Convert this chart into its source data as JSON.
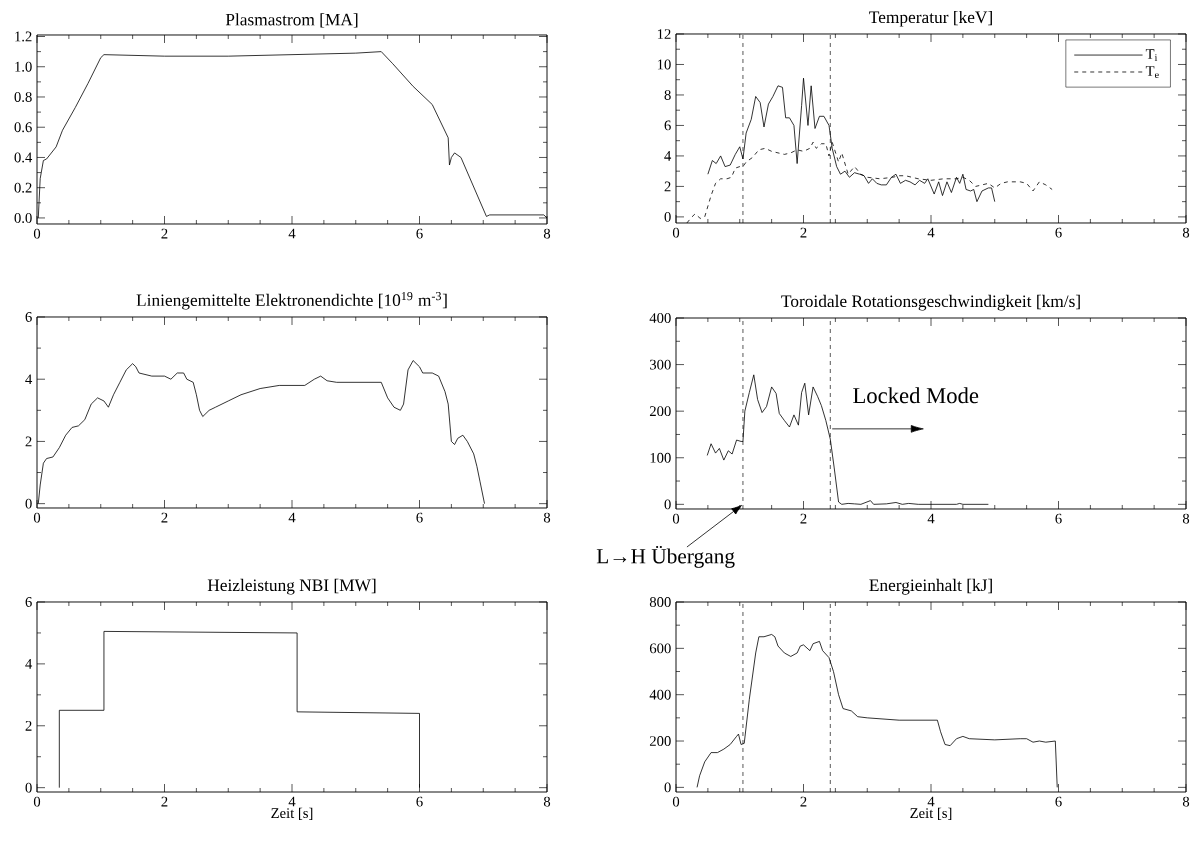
{
  "chart_data": [
    {
      "type": "line",
      "title": "Plasmastrom [MA]",
      "color": "#000000",
      "x": [
        0.02,
        0.05,
        0.1,
        0.15,
        0.3,
        0.4,
        0.6,
        0.8,
        1.0,
        1.05,
        2.0,
        3.0,
        4.0,
        5.0,
        5.4,
        5.58,
        5.9,
        6.2,
        6.45,
        6.47,
        6.5,
        6.55,
        6.65,
        7.05,
        7.1,
        7.95,
        8.0
      ],
      "values": [
        0.0,
        0.26,
        0.38,
        0.39,
        0.47,
        0.58,
        0.73,
        0.89,
        1.06,
        1.08,
        1.07,
        1.07,
        1.08,
        1.09,
        1.1,
        1.02,
        0.87,
        0.75,
        0.53,
        0.35,
        0.4,
        0.43,
        0.4,
        0.01,
        0.02,
        0.02,
        0.0
      ],
      "xlim": [
        0,
        8
      ],
      "ylim": [
        -0.04,
        1.21
      ],
      "xticks": [
        0,
        2,
        4,
        6,
        8
      ],
      "yticks": [
        {
          "value": 0,
          "label": "0.0"
        },
        0.2,
        0.4,
        0.6,
        0.8,
        {
          "value": 1,
          "label": "1.0"
        },
        1.2
      ]
    },
    {
      "type": "line",
      "title": "Temperatur [keV]",
      "legend": "top right",
      "series": [
        {
          "name": "T$_{i}$",
          "color": "#000000",
          "line_style": "solid",
          "x": [
            0.5,
            0.57,
            0.63,
            0.7,
            0.77,
            0.85,
            0.93,
            1.0,
            1.05,
            1.1,
            1.18,
            1.25,
            1.32,
            1.38,
            1.45,
            1.52,
            1.6,
            1.67,
            1.72,
            1.78,
            1.85,
            1.9,
            1.97,
            2.0,
            2.07,
            2.12,
            2.18,
            2.25,
            2.32,
            2.4,
            2.45,
            2.52,
            2.58,
            2.65,
            2.72,
            2.8,
            2.88,
            2.95,
            3.02,
            3.08,
            3.15,
            3.22,
            3.3,
            3.38,
            3.45,
            3.52,
            3.6,
            3.67,
            3.75,
            3.82,
            3.9,
            3.95,
            4.05,
            4.12,
            4.18,
            4.25,
            4.32,
            4.4,
            4.45,
            4.5,
            4.55,
            4.62,
            4.67,
            4.72,
            4.8,
            4.9,
            4.95,
            5.0
          ],
          "values": [
            2.8,
            3.7,
            3.5,
            4.0,
            3.3,
            3.4,
            4.1,
            4.6,
            3.8,
            5.5,
            6.4,
            7.9,
            7.5,
            5.9,
            7.4,
            7.9,
            8.6,
            8.5,
            6.5,
            6.5,
            6.0,
            3.5,
            7.3,
            9.1,
            6.0,
            8.6,
            5.8,
            6.6,
            6.6,
            6.0,
            4.5,
            3.3,
            2.8,
            3.0,
            2.6,
            2.9,
            2.8,
            2.7,
            2.2,
            2.5,
            2.2,
            2.1,
            2.1,
            2.6,
            2.8,
            2.2,
            2.4,
            2.3,
            2.1,
            2.4,
            2.2,
            2.5,
            1.5,
            2.3,
            1.4,
            2.3,
            1.6,
            2.6,
            2.2,
            2.8,
            1.8,
            1.7,
            1.8,
            1.0,
            1.7,
            1.9,
            1.9,
            1.0
          ]
        },
        {
          "name": "T$_{e}$",
          "color": "#000000",
          "line_style": "dashed",
          "x": [
            0.17,
            0.25,
            0.3,
            0.38,
            0.45,
            0.55,
            0.62,
            0.7,
            0.8,
            0.87,
            0.93,
            1.0,
            1.05,
            1.1,
            1.2,
            1.3,
            1.4,
            1.5,
            1.6,
            1.7,
            1.8,
            1.9,
            2.0,
            2.1,
            2.15,
            2.2,
            2.28,
            2.35,
            2.4,
            2.45,
            2.55,
            2.6,
            2.7,
            2.8,
            2.9,
            3.0,
            3.2,
            3.4,
            3.5,
            3.6,
            3.8,
            4.0,
            4.2,
            4.4,
            4.5,
            4.6,
            4.7,
            4.8,
            4.9,
            5.0,
            5.1,
            5.2,
            5.4,
            5.5,
            5.6,
            5.7,
            5.8,
            5.9
          ],
          "values": [
            -0.4,
            0.0,
            0.2,
            -0.1,
            0.0,
            1.4,
            2.2,
            2.5,
            2.5,
            2.6,
            3.2,
            3.3,
            3.3,
            3.6,
            3.9,
            4.4,
            4.5,
            4.3,
            4.2,
            4.1,
            4.2,
            4.4,
            4.3,
            4.5,
            4.9,
            4.5,
            4.8,
            4.8,
            4.0,
            4.9,
            3.6,
            4.2,
            2.8,
            3.3,
            2.8,
            2.6,
            2.5,
            2.6,
            2.7,
            2.7,
            2.5,
            2.4,
            2.5,
            2.5,
            2.6,
            2.4,
            2.0,
            2.1,
            2.2,
            1.9,
            2.2,
            2.3,
            2.3,
            2.2,
            1.7,
            2.3,
            2.1,
            1.8
          ]
        }
      ],
      "ref_lines": [
        {
          "axis": "x",
          "value": 1.05,
          "line_style": "dashed",
          "color": "#000000"
        },
        {
          "axis": "x",
          "value": 2.42,
          "line_style": "dashed",
          "color": "#000000"
        }
      ],
      "xlim": [
        0,
        8
      ],
      "ylim": [
        -0.4,
        12
      ],
      "xticks": [
        0,
        2,
        4,
        6,
        8
      ],
      "yticks": [
        0,
        2,
        4,
        6,
        8,
        10,
        12
      ]
    },
    {
      "type": "line",
      "title": "Liniengemittelte Elektronendichte [10$^{19}$ m$^{-3}$]",
      "color": "#000000",
      "x": [
        0.02,
        0.05,
        0.1,
        0.15,
        0.25,
        0.35,
        0.45,
        0.55,
        0.65,
        0.75,
        0.85,
        0.95,
        1.05,
        1.12,
        1.2,
        1.3,
        1.4,
        1.5,
        1.55,
        1.6,
        1.8,
        2.0,
        2.1,
        2.2,
        2.3,
        2.35,
        2.45,
        2.5,
        2.55,
        2.6,
        2.7,
        2.8,
        3.0,
        3.2,
        3.5,
        3.8,
        4.0,
        4.2,
        4.35,
        4.45,
        4.55,
        4.7,
        5.0,
        5.4,
        5.5,
        5.6,
        5.7,
        5.75,
        5.82,
        5.9,
        6.0,
        6.05,
        6.2,
        6.3,
        6.4,
        6.45,
        6.5,
        6.55,
        6.6,
        6.68,
        6.75,
        6.85,
        6.9,
        6.95,
        7.02
      ],
      "values": [
        0,
        0.6,
        1.3,
        1.45,
        1.5,
        1.8,
        2.2,
        2.45,
        2.5,
        2.7,
        3.2,
        3.4,
        3.3,
        3.1,
        3.5,
        3.9,
        4.3,
        4.5,
        4.4,
        4.2,
        4.1,
        4.1,
        4.0,
        4.2,
        4.2,
        4.0,
        3.9,
        3.5,
        3.0,
        2.8,
        3.0,
        3.1,
        3.3,
        3.5,
        3.7,
        3.8,
        3.8,
        3.8,
        4.0,
        4.1,
        3.95,
        3.9,
        3.9,
        3.9,
        3.4,
        3.1,
        3.0,
        3.2,
        4.3,
        4.6,
        4.4,
        4.2,
        4.2,
        4.1,
        3.6,
        3.2,
        2.0,
        1.9,
        2.1,
        2.2,
        2.0,
        1.6,
        1.2,
        0.7,
        0
      ],
      "xlim": [
        0,
        8
      ],
      "ylim": [
        -0.14,
        6
      ],
      "xticks": [
        0,
        2,
        4,
        6,
        8
      ],
      "yticks": [
        0,
        2,
        4,
        6
      ]
    },
    {
      "type": "line",
      "title": "Toroidale Rotationsgeschwindigkeit [km/s]",
      "color": "#000000",
      "x": [
        0.49,
        0.55,
        0.62,
        0.68,
        0.75,
        0.82,
        0.88,
        0.95,
        1.02,
        1.05,
        1.08,
        1.15,
        1.22,
        1.28,
        1.35,
        1.42,
        1.5,
        1.57,
        1.62,
        1.7,
        1.78,
        1.85,
        1.92,
        1.97,
        2.02,
        2.08,
        2.15,
        2.22,
        2.28,
        2.35,
        2.42,
        2.48,
        2.55,
        2.6,
        2.7,
        2.8,
        2.9,
        3.05,
        3.1,
        3.3,
        3.45,
        3.55,
        3.65,
        3.8,
        4.0,
        4.4,
        4.45,
        4.5,
        4.9
      ],
      "values": [
        105,
        130,
        110,
        120,
        95,
        115,
        108,
        138,
        135,
        135,
        200,
        240,
        278,
        225,
        197,
        210,
        252,
        238,
        195,
        180,
        166,
        192,
        170,
        240,
        260,
        192,
        252,
        232,
        212,
        180,
        140,
        80,
        5,
        0,
        2,
        1,
        0,
        8,
        0,
        1,
        4,
        0,
        2,
        0,
        0,
        0,
        2,
        0,
        0
      ],
      "ref_lines": [
        {
          "axis": "x",
          "value": 1.05,
          "line_style": "dashed",
          "color": "#000000"
        },
        {
          "axis": "x",
          "value": 2.42,
          "line_style": "dashed",
          "color": "#000000"
        }
      ],
      "annotations": [
        {
          "text": "L→H Übergang",
          "x": 1.05,
          "y": 0
        },
        {
          "text": "Locked Mode",
          "x": 2.45,
          "y": 162
        }
      ],
      "xlim": [
        0,
        8
      ],
      "ylim": [
        -10,
        400
      ],
      "xticks": [
        0,
        2,
        4,
        6,
        8
      ],
      "yticks": [
        0,
        100,
        200,
        300,
        400
      ]
    },
    {
      "type": "line",
      "title": "Heizleistung NBI [MW]",
      "xlabel": "Zeit [s]",
      "color": "#000000",
      "x": [
        0.35,
        0.35,
        1.05,
        1.05,
        4.08,
        4.08,
        6.0,
        6.0
      ],
      "values": [
        0,
        2.5,
        2.5,
        5.05,
        5.0,
        2.45,
        2.4,
        0
      ],
      "xlim": [
        0,
        8
      ],
      "ylim": [
        -0.14,
        6
      ],
      "xticks": [
        0,
        2,
        4,
        6,
        8
      ],
      "yticks": [
        0,
        2,
        4,
        6
      ]
    },
    {
      "type": "line",
      "title": "Energieinhalt [kJ]",
      "xlabel": "Zeit [s]",
      "color": "#000000",
      "x": [
        0.33,
        0.37,
        0.45,
        0.55,
        0.65,
        0.75,
        0.85,
        0.95,
        0.98,
        1.02,
        1.07,
        1.15,
        1.25,
        1.3,
        1.38,
        1.5,
        1.55,
        1.6,
        1.7,
        1.8,
        1.9,
        1.95,
        2.0,
        2.1,
        2.15,
        2.25,
        2.3,
        2.4,
        2.47,
        2.55,
        2.62,
        2.75,
        2.85,
        3.0,
        3.5,
        4.0,
        4.1,
        4.15,
        4.22,
        4.3,
        4.4,
        4.5,
        4.6,
        5.0,
        5.4,
        5.5,
        5.6,
        5.7,
        5.8,
        5.95,
        5.98
      ],
      "values": [
        0,
        50,
        110,
        150,
        150,
        165,
        185,
        220,
        230,
        185,
        190,
        380,
        580,
        650,
        650,
        660,
        650,
        610,
        580,
        565,
        580,
        610,
        615,
        590,
        620,
        630,
        590,
        560,
        500,
        400,
        340,
        330,
        305,
        300,
        290,
        290,
        290,
        240,
        185,
        180,
        210,
        220,
        210,
        205,
        210,
        210,
        195,
        200,
        195,
        200,
        0
      ],
      "ref_lines": [
        {
          "axis": "x",
          "value": 1.05,
          "line_style": "dashed",
          "color": "#000000"
        },
        {
          "axis": "x",
          "value": 2.42,
          "line_style": "dashed",
          "color": "#000000"
        }
      ],
      "xlim": [
        0,
        8
      ],
      "ylim": [
        -20,
        800
      ],
      "xticks": [
        0,
        2,
        4,
        6,
        8
      ],
      "yticks": [
        0,
        200,
        400,
        600,
        800
      ]
    }
  ]
}
